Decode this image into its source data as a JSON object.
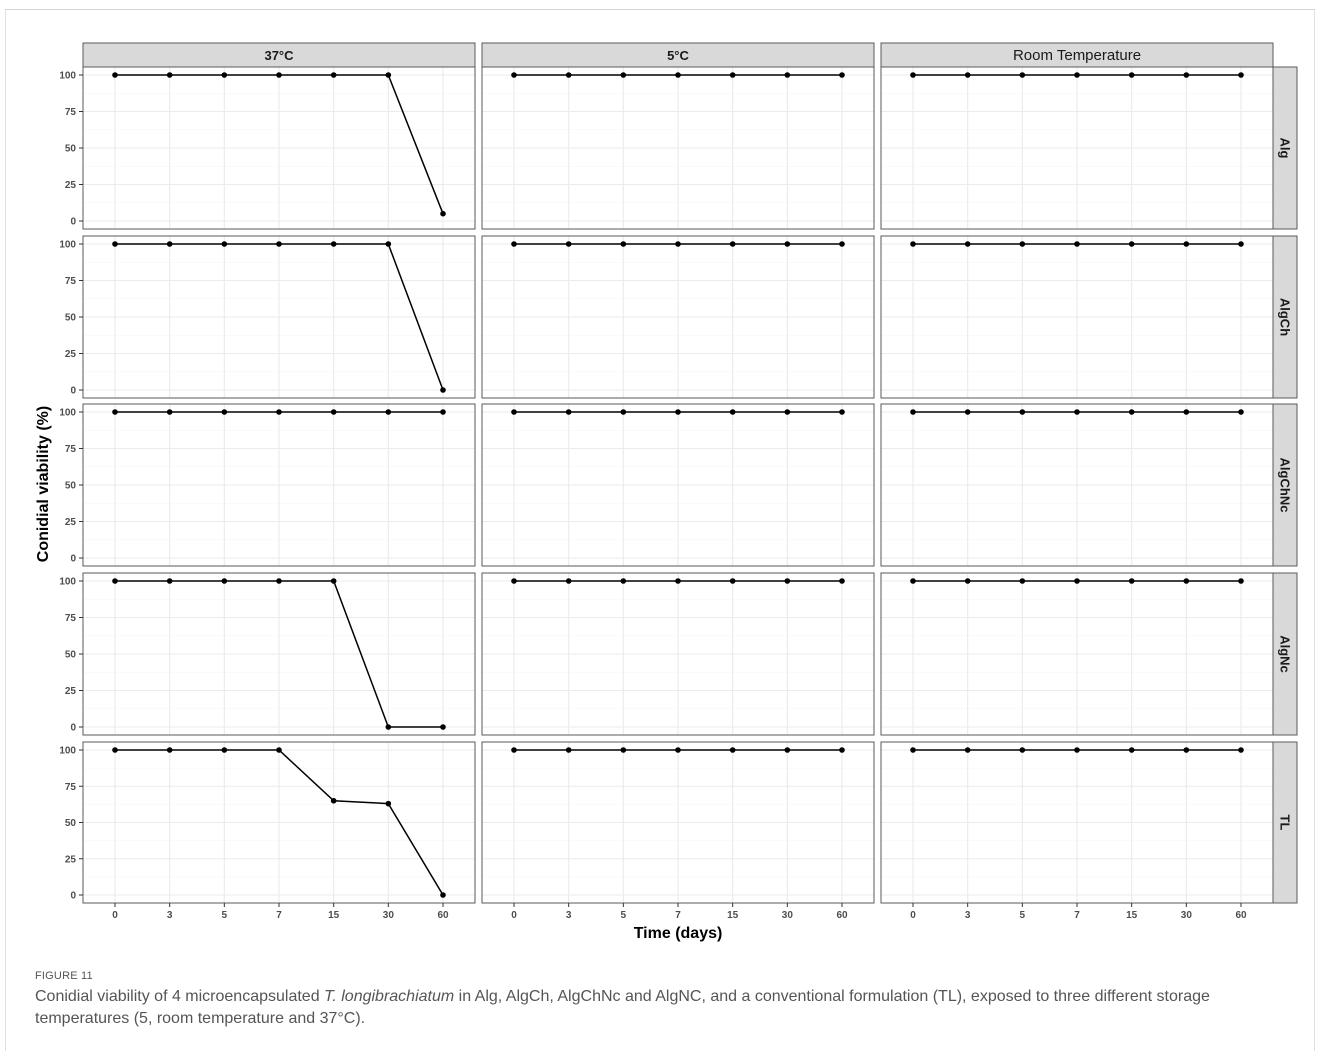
{
  "chart_data": {
    "type": "line",
    "xlabel": "Time (days)",
    "ylabel": "Conidial viability (%)",
    "x_categories": [
      "0",
      "3",
      "5",
      "7",
      "15",
      "30",
      "60"
    ],
    "y_ticks": [
      0,
      25,
      50,
      75,
      100
    ],
    "ylim": [
      0,
      100
    ],
    "grid": true,
    "columns": [
      "37°C",
      "5°C",
      "Room Temperature"
    ],
    "rows": [
      "Alg",
      "AlgCh",
      "AlgChNc",
      "AlgNc",
      "TL"
    ],
    "panels": [
      {
        "row": "Alg",
        "col": "37°C",
        "values": [
          100,
          100,
          100,
          100,
          100,
          100,
          5
        ]
      },
      {
        "row": "Alg",
        "col": "5°C",
        "values": [
          100,
          100,
          100,
          100,
          100,
          100,
          100
        ]
      },
      {
        "row": "Alg",
        "col": "Room Temperature",
        "values": [
          100,
          100,
          100,
          100,
          100,
          100,
          100
        ]
      },
      {
        "row": "AlgCh",
        "col": "37°C",
        "values": [
          100,
          100,
          100,
          100,
          100,
          100,
          0
        ]
      },
      {
        "row": "AlgCh",
        "col": "5°C",
        "values": [
          100,
          100,
          100,
          100,
          100,
          100,
          100
        ]
      },
      {
        "row": "AlgCh",
        "col": "Room Temperature",
        "values": [
          100,
          100,
          100,
          100,
          100,
          100,
          100
        ]
      },
      {
        "row": "AlgChNc",
        "col": "37°C",
        "values": [
          100,
          100,
          100,
          100,
          100,
          100,
          100
        ]
      },
      {
        "row": "AlgChNc",
        "col": "5°C",
        "values": [
          100,
          100,
          100,
          100,
          100,
          100,
          100
        ]
      },
      {
        "row": "AlgChNc",
        "col": "Room Temperature",
        "values": [
          100,
          100,
          100,
          100,
          100,
          100,
          100
        ]
      },
      {
        "row": "AlgNc",
        "col": "37°C",
        "values": [
          100,
          100,
          100,
          100,
          100,
          0,
          0
        ]
      },
      {
        "row": "AlgNc",
        "col": "5°C",
        "values": [
          100,
          100,
          100,
          100,
          100,
          100,
          100
        ]
      },
      {
        "row": "AlgNc",
        "col": "Room Temperature",
        "values": [
          100,
          100,
          100,
          100,
          100,
          100,
          100
        ]
      },
      {
        "row": "TL",
        "col": "37°C",
        "values": [
          100,
          100,
          100,
          100,
          65,
          63,
          0
        ]
      },
      {
        "row": "TL",
        "col": "5°C",
        "values": [
          100,
          100,
          100,
          100,
          100,
          100,
          100
        ]
      },
      {
        "row": "TL",
        "col": "Room Temperature",
        "values": [
          100,
          100,
          100,
          100,
          100,
          100,
          100
        ]
      }
    ]
  },
  "caption": {
    "figure_label": "FIGURE 11",
    "text_before": "Conidial viability of 4 microencapsulated ",
    "species": "T. longibrachiatum",
    "text_after": " in Alg, AlgCh, AlgChNc and AlgNC, and a conventional formulation (TL), exposed to three different storage temperatures (5, room temperature and 37°C)."
  },
  "colors": {
    "strip_fill": "#d9d9d9",
    "panel_border": "#5a5a5a",
    "grid_major": "#ebebeb",
    "grid_minor": "#f5f5f5",
    "series": "#000000"
  }
}
